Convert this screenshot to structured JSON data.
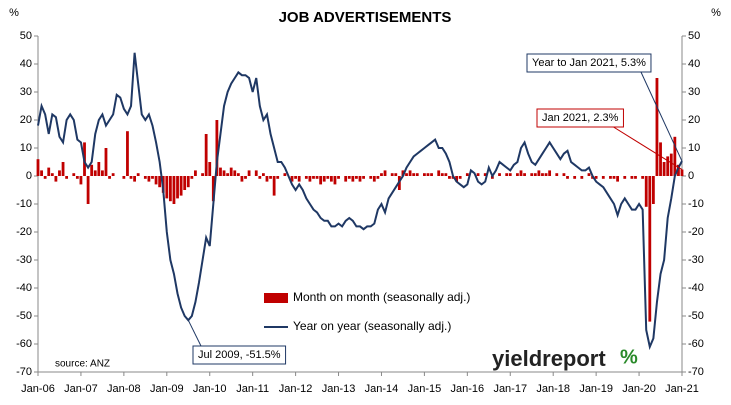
{
  "chart_data": {
    "type": "bar-line",
    "title": "JOB ADVERTISEMENTS",
    "y_label": "%",
    "y2_label": "%",
    "categories": [
      "Jan-06",
      null,
      null,
      null,
      null,
      null,
      null,
      null,
      null,
      null,
      null,
      null,
      "Jan-07",
      null,
      null,
      null,
      null,
      null,
      null,
      null,
      null,
      null,
      null,
      null,
      "Jan-08",
      null,
      null,
      null,
      null,
      null,
      null,
      null,
      null,
      null,
      null,
      null,
      "Jan-09",
      null,
      null,
      null,
      null,
      null,
      null,
      null,
      null,
      null,
      null,
      null,
      "Jan-10",
      null,
      null,
      null,
      null,
      null,
      null,
      null,
      null,
      null,
      null,
      null,
      "Jan-11",
      null,
      null,
      null,
      null,
      null,
      null,
      null,
      null,
      null,
      null,
      null,
      "Jan-12",
      null,
      null,
      null,
      null,
      null,
      null,
      null,
      null,
      null,
      null,
      null,
      "Jan-13",
      null,
      null,
      null,
      null,
      null,
      null,
      null,
      null,
      null,
      null,
      null,
      "Jan-14",
      null,
      null,
      null,
      null,
      null,
      null,
      null,
      null,
      null,
      null,
      null,
      "Jan-15",
      null,
      null,
      null,
      null,
      null,
      null,
      null,
      null,
      null,
      null,
      null,
      "Jan-16",
      null,
      null,
      null,
      null,
      null,
      null,
      null,
      null,
      null,
      null,
      null,
      "Jan-17",
      null,
      null,
      null,
      null,
      null,
      null,
      null,
      null,
      null,
      null,
      null,
      "Jan-18",
      null,
      null,
      null,
      null,
      null,
      null,
      null,
      null,
      null,
      null,
      null,
      "Jan-19",
      null,
      null,
      null,
      null,
      null,
      null,
      null,
      null,
      null,
      null,
      null,
      "Jan-20",
      null,
      null,
      null,
      null,
      null,
      null,
      null,
      null,
      null,
      null,
      null,
      "Jan-21"
    ],
    "series": [
      {
        "name": "Month on month (seasonally adj.)",
        "color": "#c00000",
        "kind": "bar",
        "values": [
          6,
          2,
          -1,
          3,
          1,
          -2,
          2,
          5,
          -1,
          0,
          1,
          -1,
          -3,
          12,
          -10,
          4,
          2,
          5,
          2,
          10,
          -1,
          1,
          0,
          0,
          -1,
          16,
          -1,
          -2,
          1,
          0,
          -1,
          -2,
          -1,
          -3,
          -4,
          -6,
          -8,
          -9,
          -10,
          -8,
          -7,
          -5,
          -4,
          -1,
          2,
          0,
          1,
          15,
          5,
          -9,
          20,
          3,
          2,
          1,
          3,
          2,
          1,
          -2,
          -1,
          2,
          0,
          2,
          -1,
          1,
          -2,
          -1,
          -7,
          -1,
          0,
          1,
          0,
          -2,
          -1,
          -2,
          0,
          -1,
          -2,
          -1,
          -1,
          -3,
          -2,
          -1,
          -2,
          -3,
          -1,
          0,
          -2,
          -1,
          -2,
          -1,
          -2,
          -1,
          0,
          -1,
          -2,
          -1,
          1,
          2,
          0,
          1,
          1,
          -5,
          2,
          1,
          2,
          1,
          1,
          0,
          1,
          1,
          1,
          0,
          2,
          1,
          1,
          -1,
          -1,
          -2,
          -1,
          0,
          1,
          0,
          0,
          1,
          0,
          1,
          0,
          -1,
          0,
          1,
          0,
          1,
          1,
          0,
          1,
          2,
          1,
          0,
          1,
          1,
          2,
          1,
          1,
          2,
          0,
          1,
          0,
          1,
          -1,
          0,
          -1,
          0,
          -1,
          0,
          1,
          -1,
          -1,
          0,
          -1,
          0,
          -1,
          -1,
          -2,
          0,
          -1,
          0,
          -1,
          -1,
          0,
          -1,
          -11,
          -52,
          -10,
          35,
          12,
          5,
          7,
          8,
          14,
          4,
          2.3
        ]
      },
      {
        "name": "Year on year (seasonally adj.)",
        "color": "#1f3864",
        "kind": "line",
        "values": [
          18,
          25,
          22,
          15,
          22,
          21,
          14,
          12,
          20,
          22,
          20,
          13,
          12,
          5,
          3,
          5,
          15,
          20,
          22,
          18,
          20,
          22,
          29,
          28,
          24,
          22,
          25,
          44,
          33,
          22,
          20,
          22,
          18,
          12,
          5,
          -5,
          -20,
          -30,
          -35,
          -42,
          -47,
          -50,
          -51.5,
          -50,
          -45,
          -38,
          -30,
          -22,
          -25,
          -10,
          5,
          15,
          25,
          30,
          33,
          35,
          37,
          36,
          36,
          35,
          30,
          35,
          25,
          20,
          22,
          15,
          10,
          5,
          5,
          3,
          0,
          -3,
          -5,
          -3,
          -5,
          -8,
          -10,
          -12,
          -13,
          -15,
          -16,
          -16,
          -18,
          -18,
          -17,
          -18,
          -16,
          -15,
          -16,
          -18,
          -18,
          -19,
          -18,
          -18,
          -17,
          -12,
          -10,
          -13,
          -8,
          -6,
          -4,
          -2,
          0,
          3,
          5,
          7,
          8,
          9,
          10,
          11,
          12,
          13,
          10,
          10,
          8,
          5,
          0,
          -2,
          -3,
          -4,
          -3,
          2,
          1,
          -2,
          -3,
          -2,
          3,
          0,
          2,
          5,
          4,
          3,
          2,
          4,
          5,
          10,
          12,
          8,
          5,
          4,
          6,
          8,
          10,
          12,
          10,
          8,
          6,
          8,
          9,
          5,
          4,
          3,
          2,
          2,
          3,
          0,
          -2,
          -3,
          -4,
          -6,
          -8,
          -10,
          -14,
          -10,
          -8,
          -10,
          -12,
          -12,
          -10,
          -12,
          -55,
          -61,
          -58,
          -45,
          -35,
          -30,
          -15,
          -8,
          0,
          3,
          5.3
        ]
      }
    ],
    "ylim": [
      -70,
      50
    ],
    "yticks": [
      -70,
      -60,
      -50,
      -40,
      -30,
      -20,
      -10,
      0,
      10,
      20,
      30,
      40,
      50
    ],
    "y2lim": [
      -70,
      50
    ],
    "y2ticks": [
      -70,
      -60,
      -50,
      -40,
      -30,
      -20,
      -10,
      0,
      10,
      20,
      30,
      40,
      50
    ],
    "annotations": [
      "Year to Jan 2021, 5.3%",
      "Jan 2021, 2.3%",
      "Jul 2009, -51.5%"
    ],
    "source": "source: ANZ",
    "logo": "yieldreport",
    "logo_symbol": "%"
  }
}
